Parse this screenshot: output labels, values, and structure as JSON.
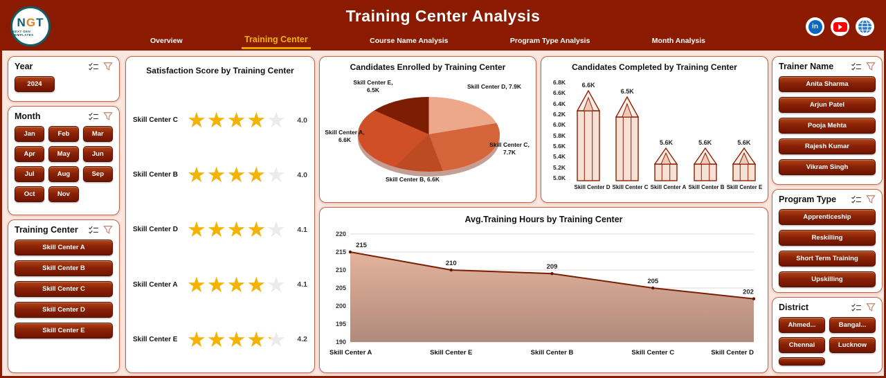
{
  "colors": {
    "header_bg": "#8A1B01",
    "page_bg": "#F9E7E0",
    "accent_gold": "#F5B301",
    "button_red": "#7C1A02",
    "panel_border": "#C2654C",
    "line_color": "#7B1E04"
  },
  "icons": {
    "select-all-icon": "checklist with checkmarks",
    "filter-icon": "funnel outline",
    "linkedin-icon": "in",
    "youtube-icon": "play triangle",
    "website-icon": "globe"
  },
  "header": {
    "title": "Training Center Analysis",
    "logo": {
      "text": "NGT",
      "subtext": "NEXT GEN TEMPLATES"
    },
    "tabs": [
      {
        "label": "Overview",
        "active": false
      },
      {
        "label": "Training Center",
        "active": true
      },
      {
        "label": "Course Name Analysis",
        "active": false
      },
      {
        "label": "Program Type Analysis",
        "active": false
      },
      {
        "label": "Month Analysis",
        "active": false
      }
    ]
  },
  "slicers": {
    "year": {
      "title": "Year",
      "items": [
        "2024"
      ]
    },
    "month": {
      "title": "Month",
      "items": [
        "Jan",
        "Feb",
        "Mar",
        "Apr",
        "May",
        "Jun",
        "Jul",
        "Aug",
        "Sep",
        "Oct",
        "Nov"
      ]
    },
    "training_center": {
      "title": "Training Center",
      "items": [
        "Skill Center A",
        "Skill Center B",
        "Skill Center C",
        "Skill Center D",
        "Skill Center E"
      ]
    },
    "trainer_name": {
      "title": "Trainer Name",
      "items": [
        "Anita Sharma",
        "Arjun Patel",
        "Pooja Mehta",
        "Rajesh Kumar",
        "Vikram Singh"
      ]
    },
    "program_type": {
      "title": "Program Type",
      "items": [
        "Apprenticeship",
        "Reskilling",
        "Short Term Training",
        "Upskilling"
      ]
    },
    "district": {
      "title": "District",
      "items": [
        "Ahmed...",
        "Bangal...",
        "Chennai",
        "Lucknow",
        ""
      ]
    }
  },
  "chart_data": [
    {
      "type": "bar",
      "subtype": "star-rating",
      "title": "Satisfaction Score by Training Center",
      "categories": [
        "Skill Center C",
        "Skill Center B",
        "Skill Center D",
        "Skill Center A",
        "Skill Center E"
      ],
      "values": [
        4.0,
        4.0,
        4.1,
        4.1,
        4.2
      ],
      "value_labels": [
        "4.0",
        "4.0",
        "4.1",
        "4.1",
        "4.2"
      ],
      "max": 5,
      "star_color": "#F5B301"
    },
    {
      "type": "pie",
      "title": "Candidates Enrolled by Training Center",
      "slices": [
        {
          "label": "Skill Center D, 7.9K",
          "name": "Skill Center D",
          "value": 7.9,
          "color": "#EDA88B"
        },
        {
          "label": "Skill Center C, 7.7K",
          "name": "Skill Center C",
          "value": 7.7,
          "color": "#D4653A"
        },
        {
          "label": "Skill Center B, 6.6K",
          "name": "Skill Center B",
          "value": 6.6,
          "color": "#BC4A22"
        },
        {
          "label": "Skill Center A, 6.6K",
          "name": "Skill Center A",
          "value": 6.6,
          "color": "#CF5026"
        },
        {
          "label": "Skill Center E, 6.5K",
          "name": "Skill Center E",
          "value": 6.5,
          "color": "#7B1E04"
        }
      ],
      "unit": "K"
    },
    {
      "type": "bar",
      "subtype": "pencil",
      "title": "Candidates Completed by Training Center",
      "categories": [
        "Skill Center D",
        "Skill Center C",
        "Skill Center A",
        "Skill Center B",
        "Skill Center E"
      ],
      "values": [
        6.6,
        6.5,
        5.6,
        5.6,
        5.6
      ],
      "value_labels": [
        "6.6K",
        "6.5K",
        "5.6K",
        "5.6K",
        "5.6K"
      ],
      "y_ticks": [
        "6.8K",
        "6.6K",
        "6.4K",
        "6.2K",
        "6.0K",
        "5.8K",
        "5.6K",
        "5.4K",
        "5.2K",
        "5.0K"
      ],
      "ymin": 5.0,
      "ymax": 6.8
    },
    {
      "type": "area",
      "title": "Avg.Training Hours by Training Center",
      "categories": [
        "Skill Center A",
        "Skill Center E",
        "Skill Center B",
        "Skill Center C",
        "Skill Center D"
      ],
      "values": [
        215,
        210,
        209,
        205,
        202
      ],
      "value_labels": [
        "215",
        "210",
        "209",
        "205",
        "202"
      ],
      "y_ticks": [
        "220",
        "215",
        "210",
        "205",
        "200",
        "195",
        "190"
      ],
      "ymin": 190,
      "ymax": 220,
      "line_color": "#7B1E04"
    }
  ]
}
